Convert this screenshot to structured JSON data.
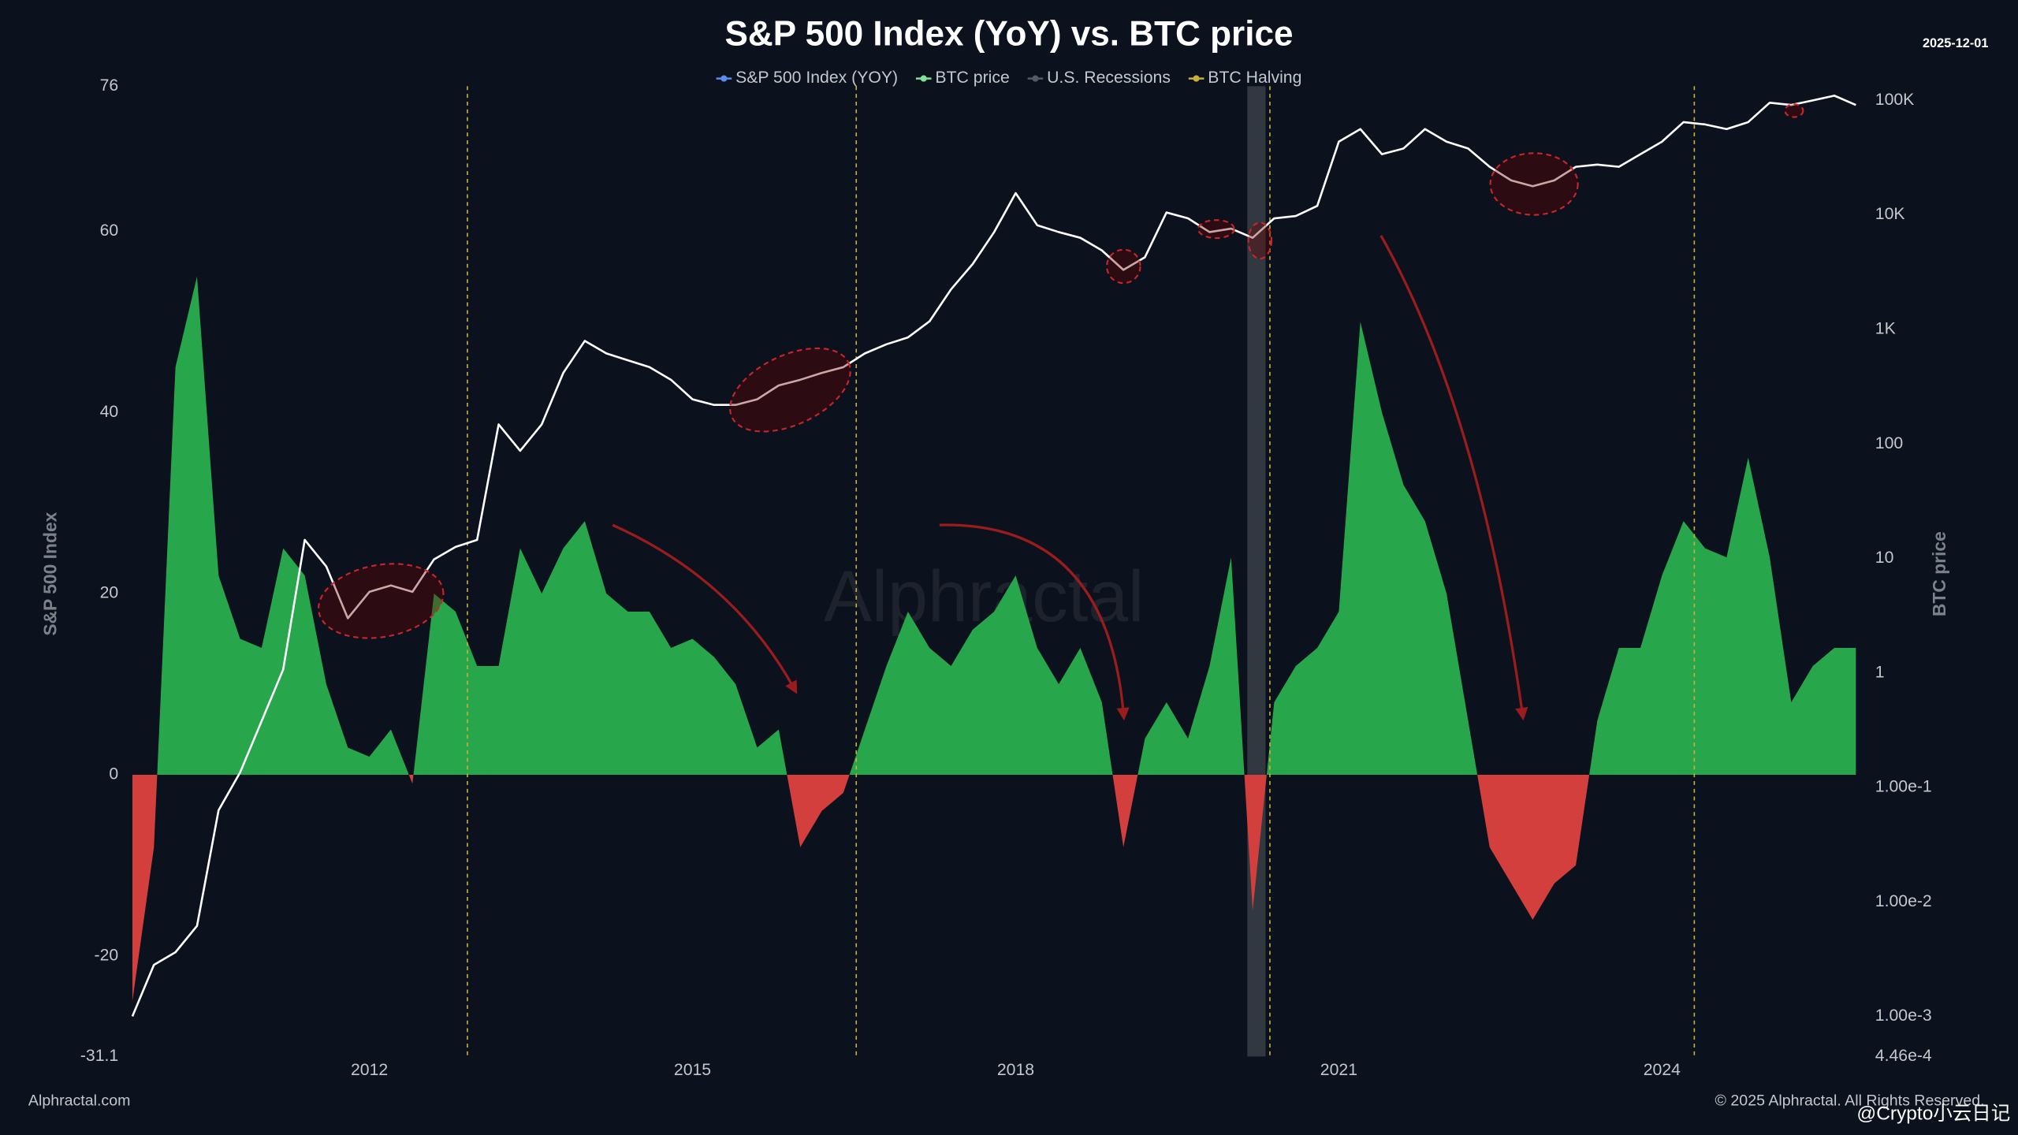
{
  "chart_data": {
    "type": "area-line",
    "title": "S&P 500 Index (YoY) vs. BTC price",
    "date": "2025-12-01",
    "watermark": "Alphractal",
    "source": "Alphractal.com",
    "copyright": "© 2025 Alphractal. All Rights Reserved.",
    "overlay": "@Crypto小云日记",
    "ylabel": "S&P 500 Index",
    "y2label": "BTC price",
    "x": [
      2009.8,
      2010.0,
      2010.2,
      2010.4,
      2010.6,
      2010.8,
      2011.0,
      2011.2,
      2011.4,
      2011.6,
      2011.8,
      2012.0,
      2012.2,
      2012.4,
      2012.6,
      2012.8,
      2013.0,
      2013.2,
      2013.4,
      2013.6,
      2013.8,
      2014.0,
      2014.2,
      2014.4,
      2014.6,
      2014.8,
      2015.0,
      2015.2,
      2015.4,
      2015.6,
      2015.8,
      2016.0,
      2016.2,
      2016.4,
      2016.6,
      2016.8,
      2017.0,
      2017.2,
      2017.4,
      2017.6,
      2017.8,
      2018.0,
      2018.2,
      2018.4,
      2018.6,
      2018.8,
      2019.0,
      2019.2,
      2019.4,
      2019.6,
      2019.8,
      2020.0,
      2020.2,
      2020.4,
      2020.6,
      2020.8,
      2021.0,
      2021.2,
      2021.4,
      2021.6,
      2021.8,
      2022.0,
      2022.2,
      2022.4,
      2022.6,
      2022.8,
      2023.0,
      2023.2,
      2023.4,
      2023.6,
      2023.8,
      2024.0,
      2024.2,
      2024.4,
      2024.6,
      2024.8,
      2025.0,
      2025.2,
      2025.4,
      2025.6,
      2025.8
    ],
    "series": [
      {
        "name": "S&P 500 Index (YOY)",
        "color": "#5b8def",
        "positive_color": "#27a64b",
        "negative_color": "#d33f3c",
        "values": [
          -25,
          -8,
          45,
          55,
          22,
          15,
          14,
          25,
          22,
          10,
          3,
          2,
          5,
          -1,
          20,
          18,
          12,
          12,
          25,
          20,
          25,
          28,
          20,
          18,
          18,
          14,
          15,
          13,
          10,
          3,
          5,
          -8,
          -4,
          -2,
          5,
          12,
          18,
          14,
          12,
          16,
          18,
          22,
          14,
          10,
          14,
          8,
          -8,
          4,
          8,
          4,
          12,
          24,
          -15,
          8,
          12,
          14,
          18,
          50,
          40,
          32,
          28,
          20,
          6,
          -8,
          -12,
          -16,
          -12,
          -10,
          6,
          14,
          14,
          22,
          28,
          25,
          24,
          35,
          24,
          8,
          12,
          14,
          14
        ]
      },
      {
        "name": "BTC price",
        "color": "#ffffff",
        "legend_color": "#7fe39a",
        "axis": "y2",
        "values": [
          0.001,
          0.00282,
          0.00363,
          0.00617,
          0.0631,
          0.135,
          0.38,
          1.07,
          14.5,
          8.5,
          3.0,
          5.1,
          5.8,
          5.1,
          9.8,
          12.6,
          14.5,
          148,
          87,
          148,
          417,
          794,
          617,
          537,
          468,
          363,
          245,
          219,
          219,
          245,
          324,
          363,
          417,
          468,
          617,
          741,
          851,
          1175,
          2239,
          3715,
          7079,
          15500,
          8130,
          7079,
          6310,
          4900,
          3310,
          4270,
          10500,
          9330,
          7079,
          7590,
          6310,
          9330,
          9770,
          12000,
          43600,
          56200,
          33900,
          38000,
          56200,
          43600,
          38000,
          26300,
          20000,
          17800,
          20000,
          26300,
          27500,
          26300,
          33900,
          43600,
          64600,
          61700,
          56200,
          64600,
          95500,
          91200,
          100000,
          110000,
          91200
        ]
      }
    ],
    "recessions": {
      "name": "U.S. Recessions",
      "color": "#3a3f47",
      "ranges": [
        [
          2020.15,
          2020.32
        ]
      ]
    },
    "halvings": {
      "name": "BTC Halving",
      "color": "#c9b037",
      "x": [
        2012.91,
        2016.52,
        2020.36,
        2024.3
      ]
    },
    "xlim": [
      2009.7,
      2025.9
    ],
    "xticks": [
      2012,
      2015,
      2018,
      2021,
      2024
    ],
    "ylim": [
      -31.1,
      76
    ],
    "yticks": [
      -31.1,
      -20,
      0,
      20,
      40,
      60,
      76
    ],
    "y2lim": [
      0.000446,
      133000
    ],
    "y2ticks": [
      {
        "value": 0.000446,
        "label": "4.46e-4"
      },
      {
        "value": 0.001,
        "label": "1.00e-3"
      },
      {
        "value": 0.01,
        "label": "1.00e-2"
      },
      {
        "value": 0.1,
        "label": "1.00e-1"
      },
      1,
      10,
      100,
      {
        "value": 1000,
        "label": "1K"
      },
      {
        "value": 10000,
        "label": "10K"
      },
      {
        "value": 100000,
        "label": "100K"
      }
    ],
    "y2log": true,
    "grid": false
  }
}
